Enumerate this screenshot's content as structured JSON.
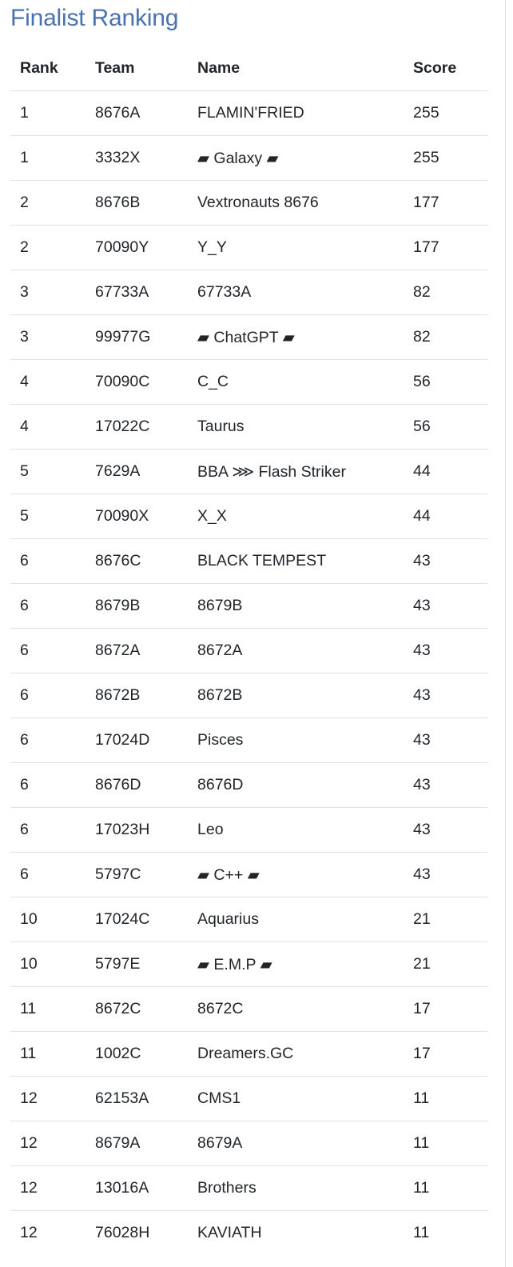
{
  "title": "Finalist Ranking",
  "columns": [
    "Rank",
    "Team",
    "Name",
    "Score"
  ],
  "rows": [
    {
      "rank": "1",
      "team": "8676A",
      "name": "FLAMIN'FRIED",
      "score": "255"
    },
    {
      "rank": "1",
      "team": "3332X",
      "name": "▰ Galaxy ▰",
      "score": "255"
    },
    {
      "rank": "2",
      "team": "8676B",
      "name": "Vextronauts 8676",
      "score": "177"
    },
    {
      "rank": "2",
      "team": "70090Y",
      "name": "Y_Y",
      "score": "177"
    },
    {
      "rank": "3",
      "team": "67733A",
      "name": "67733A",
      "score": "82"
    },
    {
      "rank": "3",
      "team": "99977G",
      "name": "▰ ChatGPT ▰",
      "score": "82"
    },
    {
      "rank": "4",
      "team": "70090C",
      "name": "C_C",
      "score": "56"
    },
    {
      "rank": "4",
      "team": "17022C",
      "name": "Taurus",
      "score": "56"
    },
    {
      "rank": "5",
      "team": "7629A",
      "name": "BBA ⋙ Flash Striker",
      "score": "44"
    },
    {
      "rank": "5",
      "team": "70090X",
      "name": "X_X",
      "score": "44"
    },
    {
      "rank": "6",
      "team": "8676C",
      "name": "BLACK TEMPEST",
      "score": "43"
    },
    {
      "rank": "6",
      "team": "8679B",
      "name": "8679B",
      "score": "43"
    },
    {
      "rank": "6",
      "team": "8672A",
      "name": "8672A",
      "score": "43"
    },
    {
      "rank": "6",
      "team": "8672B",
      "name": "8672B",
      "score": "43"
    },
    {
      "rank": "6",
      "team": "17024D",
      "name": "Pisces",
      "score": "43"
    },
    {
      "rank": "6",
      "team": "8676D",
      "name": "8676D",
      "score": "43"
    },
    {
      "rank": "6",
      "team": "17023H",
      "name": "Leo",
      "score": "43"
    },
    {
      "rank": "6",
      "team": "5797C",
      "name": "▰ C++ ▰",
      "score": "43"
    },
    {
      "rank": "10",
      "team": "17024C",
      "name": "Aquarius",
      "score": "21"
    },
    {
      "rank": "10",
      "team": "5797E",
      "name": "▰ E.M.P ▰",
      "score": "21"
    },
    {
      "rank": "11",
      "team": "8672C",
      "name": "8672C",
      "score": "17"
    },
    {
      "rank": "11",
      "team": "1002C",
      "name": "Dreamers.GC",
      "score": "17"
    },
    {
      "rank": "12",
      "team": "62153A",
      "name": "CMS1",
      "score": "11"
    },
    {
      "rank": "12",
      "team": "8679A",
      "name": "8679A",
      "score": "11"
    },
    {
      "rank": "12",
      "team": "13016A",
      "name": "Brothers",
      "score": "11"
    },
    {
      "rank": "12",
      "team": "76028H",
      "name": "KAVIATH",
      "score": "11"
    }
  ]
}
